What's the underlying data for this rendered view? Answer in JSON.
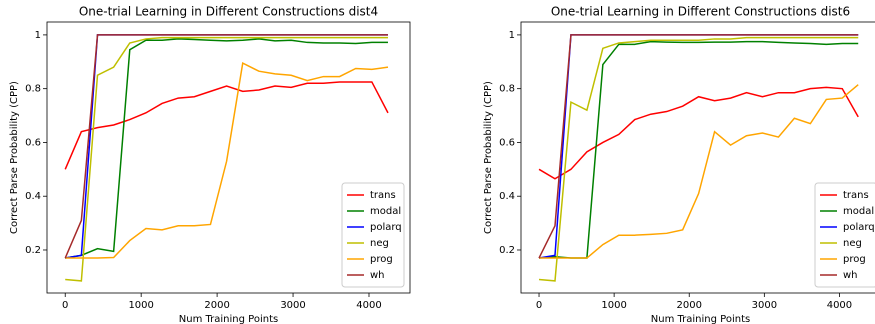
{
  "chart_data": [
    {
      "type": "line",
      "title": "One-trial Learning in Different Constructions dist4",
      "x_label": "Num Training Points",
      "y_label": "Correct Parse Probability (CPP)",
      "x": [
        0,
        212.5,
        425,
        637.5,
        850,
        1062.5,
        1275,
        1487.5,
        1700,
        1912.5,
        2125,
        2337.5,
        2550,
        2762.5,
        2975,
        3187.5,
        3400,
        3612.5,
        3825,
        4037.5,
        4250
      ],
      "xlim": [
        -240,
        4540
      ],
      "xticks": [
        0,
        1000,
        2000,
        3000,
        4000
      ],
      "ylim": [
        0.04,
        1.048
      ],
      "yticks": [
        0.2,
        0.4,
        0.6,
        0.8,
        1.0
      ],
      "legend": "lower right",
      "series": [
        {
          "name": "trans",
          "color": "#ff0000",
          "values": [
            0.5,
            0.64,
            0.655,
            0.665,
            0.685,
            0.71,
            0.745,
            0.765,
            0.77,
            0.79,
            0.81,
            0.79,
            0.795,
            0.81,
            0.805,
            0.82,
            0.82,
            0.825,
            0.825,
            0.825,
            0.71
          ]
        },
        {
          "name": "modal",
          "color": "#008000",
          "values": [
            0.17,
            0.18,
            0.205,
            0.195,
            0.945,
            0.98,
            0.98,
            0.985,
            0.983,
            0.98,
            0.978,
            0.98,
            0.985,
            0.978,
            0.98,
            0.972,
            0.97,
            0.97,
            0.968,
            0.972,
            0.972
          ]
        },
        {
          "name": "polarq",
          "color": "#0000ff",
          "values": [
            0.17,
            0.18,
            1.0,
            1.0,
            1.0,
            1.0,
            1.0,
            1.0,
            1.0,
            1.0,
            1.0,
            1.0,
            1.0,
            1.0,
            1.0,
            1.0,
            1.0,
            1.0,
            1.0,
            1.0,
            1.0
          ]
        },
        {
          "name": "neg",
          "color": "#bfbf00",
          "values": [
            0.09,
            0.085,
            0.85,
            0.88,
            0.97,
            0.985,
            0.99,
            0.99,
            0.99,
            0.99,
            0.99,
            0.99,
            0.99,
            0.99,
            0.99,
            0.99,
            0.99,
            0.99,
            0.99,
            0.99,
            0.99
          ]
        },
        {
          "name": "prog",
          "color": "#ffa500",
          "values": [
            0.17,
            0.17,
            0.17,
            0.172,
            0.235,
            0.28,
            0.275,
            0.29,
            0.29,
            0.295,
            0.53,
            0.895,
            0.865,
            0.855,
            0.85,
            0.83,
            0.845,
            0.845,
            0.875,
            0.872,
            0.88
          ]
        },
        {
          "name": "wh",
          "color": "#a52a2a",
          "values": [
            0.17,
            0.31,
            1.0,
            1.0,
            1.0,
            1.0,
            1.0,
            1.0,
            1.0,
            1.0,
            1.0,
            1.0,
            1.0,
            1.0,
            1.0,
            1.0,
            1.0,
            1.0,
            1.0,
            1.0,
            1.0
          ]
        }
      ]
    },
    {
      "type": "line",
      "title": "One-trial Learning in Different Constructions dist6",
      "x_label": "Num Training Points",
      "y_label": "Correct Parse Probability (CPP)",
      "x": [
        0,
        212.5,
        425,
        637.5,
        850,
        1062.5,
        1275,
        1487.5,
        1700,
        1912.5,
        2125,
        2337.5,
        2550,
        2762.5,
        2975,
        3187.5,
        3400,
        3612.5,
        3825,
        4037.5,
        4250
      ],
      "xlim": [
        -240,
        4540
      ],
      "xticks": [
        0,
        1000,
        2000,
        3000,
        4000
      ],
      "ylim": [
        0.04,
        1.048
      ],
      "yticks": [
        0.2,
        0.4,
        0.6,
        0.8,
        1.0
      ],
      "legend": "lower right",
      "series": [
        {
          "name": "trans",
          "color": "#ff0000",
          "values": [
            0.5,
            0.465,
            0.5,
            0.565,
            0.6,
            0.63,
            0.685,
            0.705,
            0.715,
            0.735,
            0.77,
            0.755,
            0.765,
            0.785,
            0.77,
            0.785,
            0.785,
            0.8,
            0.805,
            0.8,
            0.695
          ]
        },
        {
          "name": "modal",
          "color": "#008000",
          "values": [
            0.17,
            0.175,
            0.17,
            0.17,
            0.89,
            0.965,
            0.965,
            0.975,
            0.973,
            0.972,
            0.972,
            0.973,
            0.973,
            0.975,
            0.975,
            0.972,
            0.97,
            0.968,
            0.965,
            0.968,
            0.968
          ]
        },
        {
          "name": "polarq",
          "color": "#0000ff",
          "values": [
            0.17,
            0.18,
            1.0,
            1.0,
            1.0,
            1.0,
            1.0,
            1.0,
            1.0,
            1.0,
            1.0,
            1.0,
            1.0,
            1.0,
            1.0,
            1.0,
            1.0,
            1.0,
            1.0,
            1.0,
            1.0
          ]
        },
        {
          "name": "neg",
          "color": "#bfbf00",
          "values": [
            0.09,
            0.085,
            0.75,
            0.72,
            0.95,
            0.97,
            0.975,
            0.98,
            0.98,
            0.98,
            0.98,
            0.985,
            0.985,
            0.99,
            0.99,
            0.99,
            0.99,
            0.99,
            0.99,
            0.99,
            0.99
          ]
        },
        {
          "name": "prog",
          "color": "#ffa500",
          "values": [
            0.17,
            0.17,
            0.17,
            0.17,
            0.22,
            0.255,
            0.255,
            0.258,
            0.262,
            0.275,
            0.41,
            0.64,
            0.59,
            0.625,
            0.635,
            0.62,
            0.69,
            0.67,
            0.76,
            0.765,
            0.815
          ]
        },
        {
          "name": "wh",
          "color": "#a52a2a",
          "values": [
            0.17,
            0.29,
            1.0,
            1.0,
            1.0,
            1.0,
            1.0,
            1.0,
            1.0,
            1.0,
            1.0,
            1.0,
            1.0,
            1.0,
            1.0,
            1.0,
            1.0,
            1.0,
            1.0,
            1.0,
            1.0
          ]
        }
      ]
    }
  ]
}
